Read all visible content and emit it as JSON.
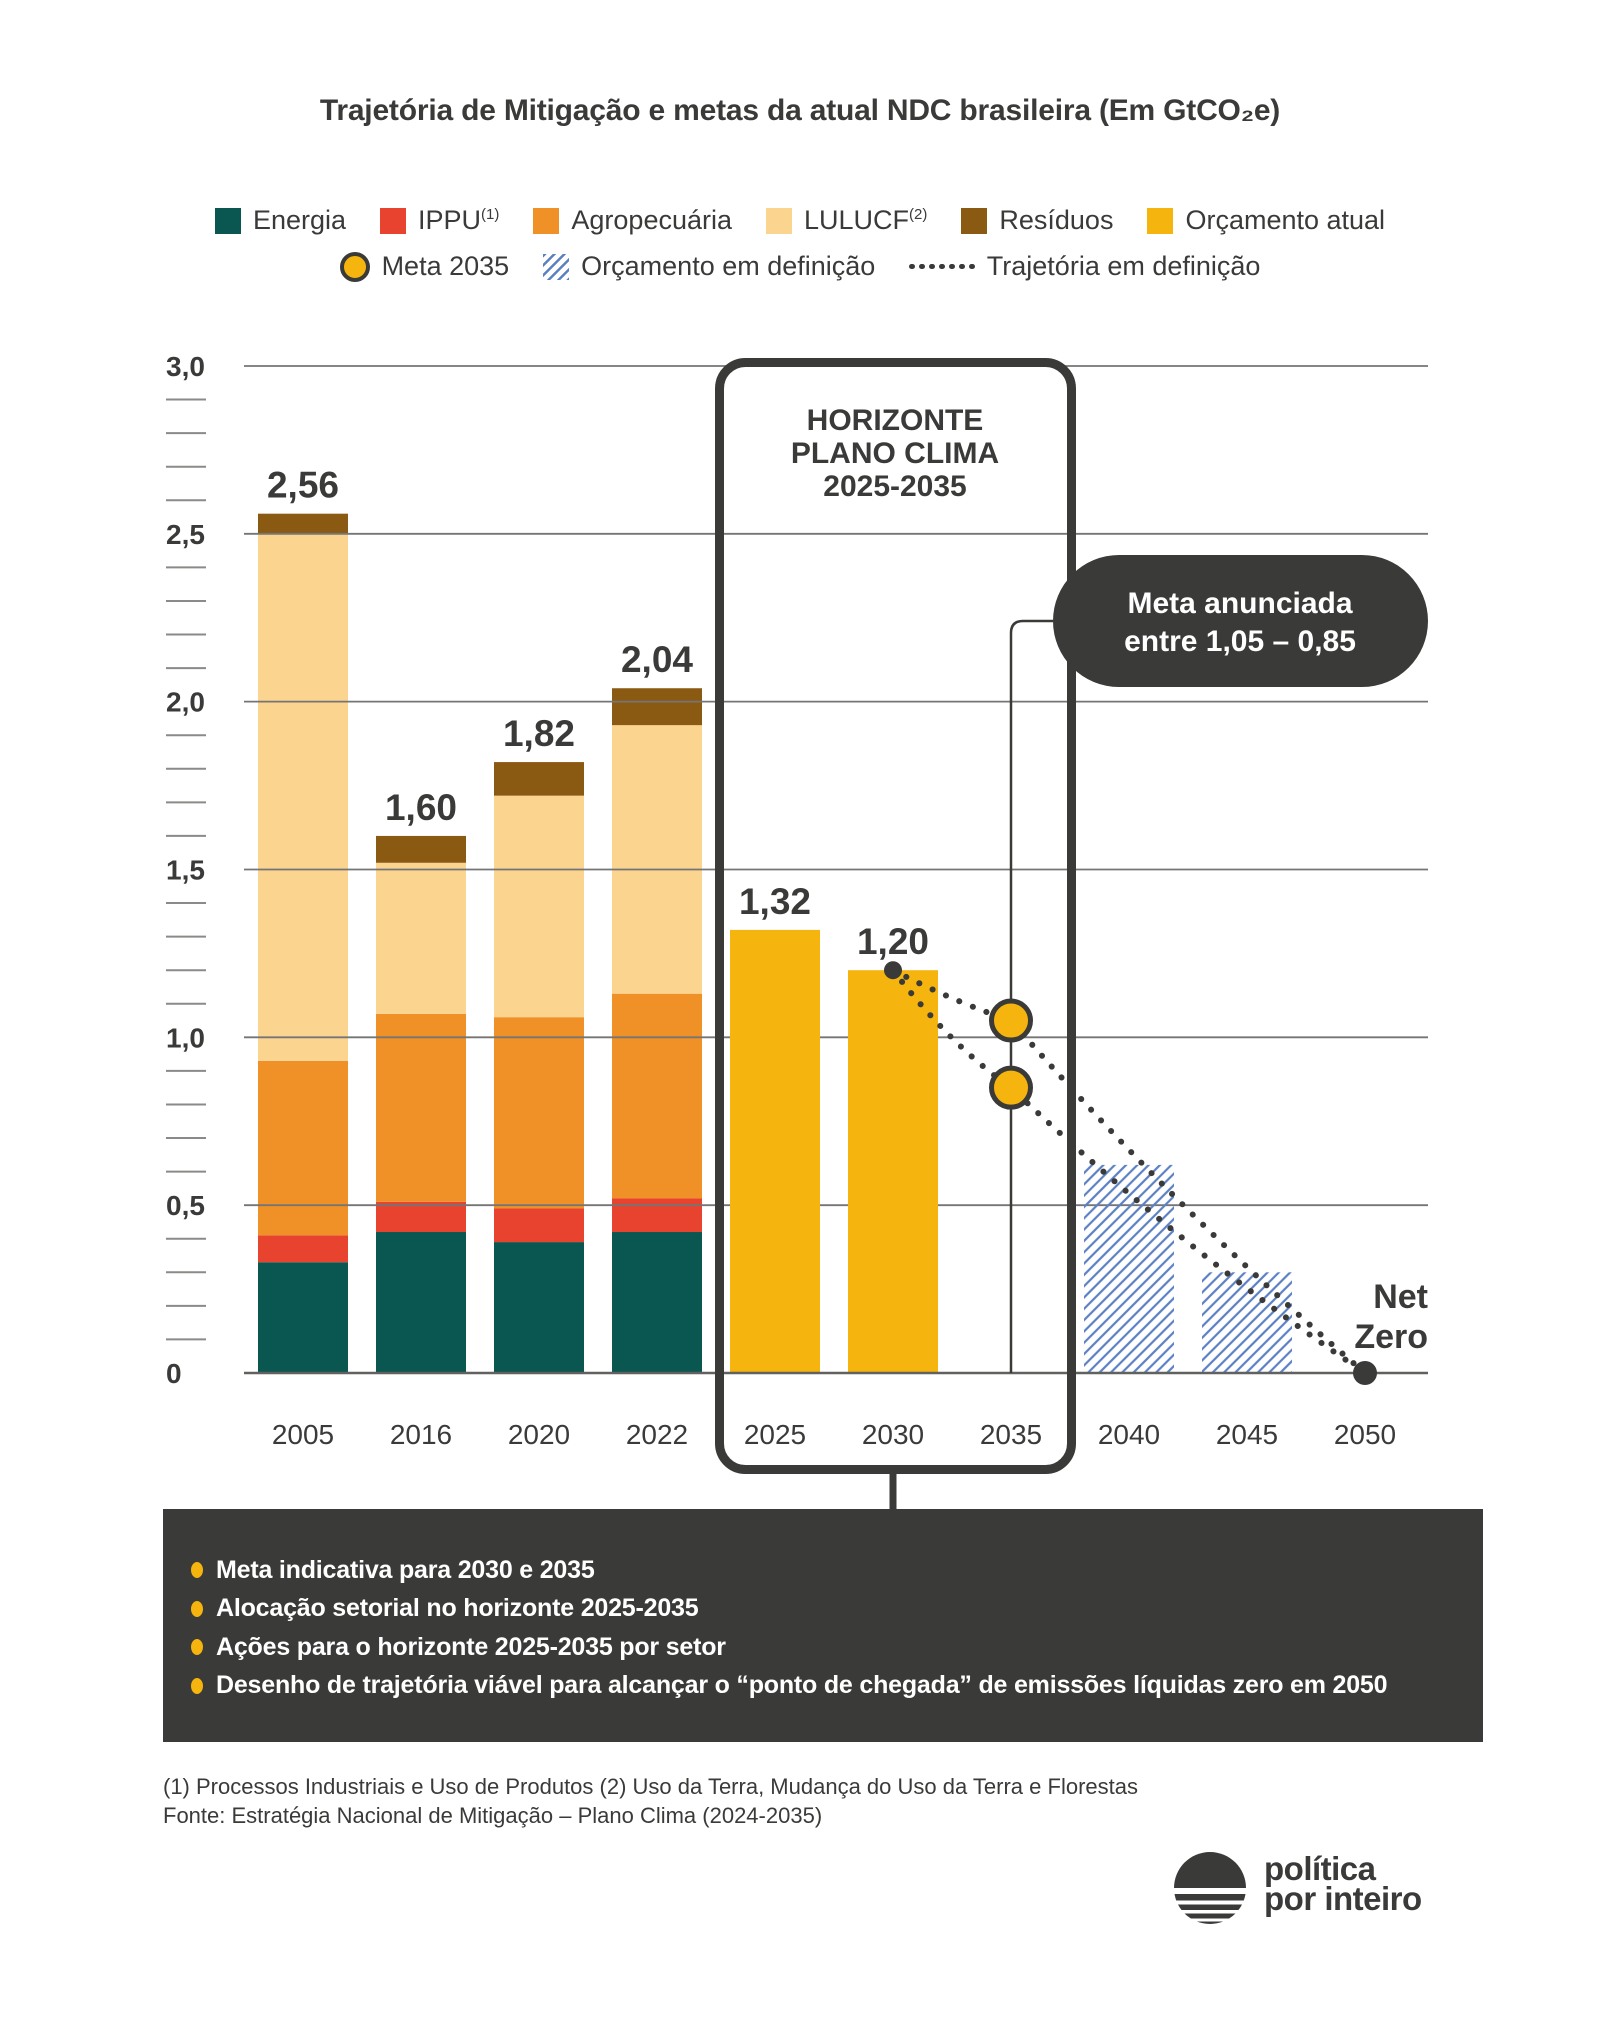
{
  "title": "Trajetória de Mitigação e metas da atual NDC brasileira (Em GtCO₂e)",
  "colors": {
    "energia": "#0a5650",
    "ippu": "#e8432f",
    "agropecuaria": "#ef9126",
    "lulucf": "#fbd490",
    "residuos": "#8b5a12",
    "orcamento_atual": "#f6b40e",
    "orcamento_em_definicao_hatch": "#5c80c4",
    "dark": "#3a3a38",
    "gridline": "#757575",
    "white": "#ffffff"
  },
  "legend": {
    "rows": [
      [
        {
          "label": "Energia",
          "swatch": "square",
          "color": "#0a5650"
        },
        {
          "label": "IPPU",
          "sup": "(1)",
          "swatch": "square",
          "color": "#e8432f"
        },
        {
          "label": "Agropecuária",
          "swatch": "square",
          "color": "#ef9126"
        },
        {
          "label": "LULUCF",
          "sup": "(2)",
          "swatch": "square",
          "color": "#fbd490"
        },
        {
          "label": "Resíduos",
          "swatch": "square",
          "color": "#8b5a12"
        },
        {
          "label": "Orçamento atual",
          "swatch": "square",
          "color": "#f6b40e"
        }
      ],
      [
        {
          "label": "Meta 2035",
          "swatch": "circle",
          "color": "#f6b40e"
        },
        {
          "label": "Orçamento em definição",
          "swatch": "hatch",
          "color": "#5c80c4"
        },
        {
          "label": "Trajetória em definição",
          "swatch": "dots",
          "color": "#3a3a38"
        }
      ]
    ]
  },
  "chart_data": {
    "type": "bar",
    "unit": "GtCO2e",
    "categories": [
      "2005",
      "2016",
      "2020",
      "2022",
      "2025",
      "2030",
      "2035",
      "2040",
      "2045",
      "2050"
    ],
    "stacked_series": [
      {
        "name": "Energia",
        "color": "#0a5650",
        "values": {
          "2005": 0.33,
          "2016": 0.42,
          "2020": 0.39,
          "2022": 0.42
        }
      },
      {
        "name": "IPPU",
        "color": "#e8432f",
        "values": {
          "2005": 0.08,
          "2016": 0.09,
          "2020": 0.1,
          "2022": 0.1
        }
      },
      {
        "name": "Agropecuária",
        "color": "#ef9126",
        "values": {
          "2005": 0.52,
          "2016": 0.56,
          "2020": 0.57,
          "2022": 0.61
        }
      },
      {
        "name": "LULUCF",
        "color": "#fbd490",
        "values": {
          "2005": 1.57,
          "2016": 0.45,
          "2020": 0.66,
          "2022": 0.8
        }
      },
      {
        "name": "Resíduos",
        "color": "#8b5a12",
        "values": {
          "2005": 0.06,
          "2016": 0.08,
          "2020": 0.1,
          "2022": 0.11
        }
      }
    ],
    "totals": [
      {
        "category": "2005",
        "value": 2.56,
        "label": "2,56"
      },
      {
        "category": "2016",
        "value": 1.6,
        "label": "1,60"
      },
      {
        "category": "2020",
        "value": 1.82,
        "label": "1,82"
      },
      {
        "category": "2022",
        "value": 2.04,
        "label": "2,04"
      },
      {
        "category": "2025",
        "value": 1.32,
        "label": "1,32"
      },
      {
        "category": "2030",
        "value": 1.2,
        "label": "1,20"
      }
    ],
    "budget_bars": [
      {
        "category": "2025",
        "value": 1.32,
        "label": "1,32",
        "color": "#f6b40e"
      },
      {
        "category": "2030",
        "value": 1.2,
        "label": "1,20",
        "color": "#f6b40e"
      }
    ],
    "pending_budget_bars": [
      {
        "category": "2040",
        "value": 0.62
      },
      {
        "category": "2045",
        "value": 0.3
      }
    ],
    "meta_2035": {
      "category": "2035",
      "values": [
        1.05,
        0.85
      ]
    },
    "trajectory": {
      "from": {
        "category": "2030",
        "value": 1.2
      },
      "through_2035": [
        1.05,
        0.85
      ],
      "to": {
        "category": "2050",
        "value": 0
      }
    },
    "y_axis": {
      "range": [
        0,
        3
      ],
      "minor_step": 0.1,
      "ticks": [
        {
          "label": "3,0",
          "value": 3.0
        },
        {
          "label": "2,5",
          "value": 2.5
        },
        {
          "label": "2,0",
          "value": 2.0
        },
        {
          "label": "1,5",
          "value": 1.5
        },
        {
          "label": "1,0",
          "value": 1.0
        },
        {
          "label": "0,5",
          "value": 0.5
        },
        {
          "label": "0",
          "value": 0
        }
      ]
    },
    "annotations": {
      "horizonte_box": {
        "lines": [
          "HORIZONTE",
          "PLANO CLIMA",
          "2025-2035"
        ],
        "span": [
          "2025",
          "2035"
        ]
      },
      "meta_callout": {
        "lines": [
          "Meta anunciada",
          "entre 1,05 – 0,85"
        ]
      },
      "net_zero": {
        "lines": [
          "Net",
          "Zero"
        ]
      }
    },
    "grid": true,
    "legend_position": "top"
  },
  "panel": {
    "bullet_color": "#f6b40e",
    "bullets": [
      "Meta indicativa para 2030 e 2035",
      "Alocação setorial no horizonte 2025-2035",
      "Ações para o horizonte 2025-2035 por setor",
      "Desenho de trajetória viável para alcançar o “ponto de chegada” de emissões líquidas zero em 2050"
    ]
  },
  "footnotes": {
    "line1": "(1) Processos Industriais e Uso de Produtos (2) Uso da Terra, Mudança do Uso da Terra e Florestas",
    "line2": "Fonte: Estratégia Nacional de Mitigação – Plano Clima (2024-2035)"
  },
  "logo": {
    "line1": "política",
    "line2": "por inteiro"
  }
}
